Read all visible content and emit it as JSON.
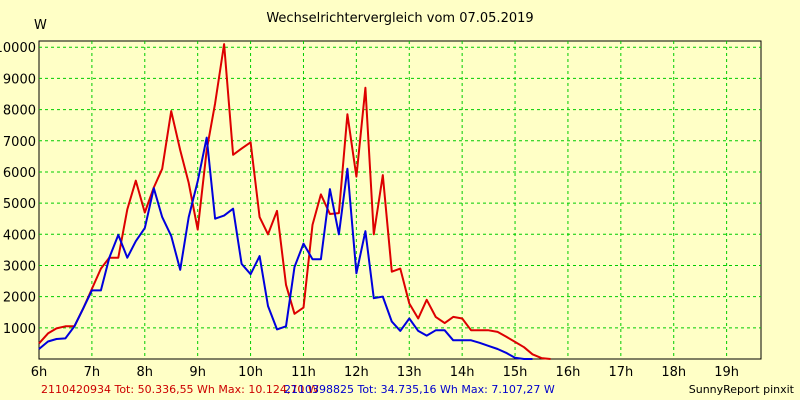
{
  "chart_data": {
    "type": "line",
    "title": "Wechselrichtervergleich vom 07.05.2019",
    "ylabel": "W",
    "xlabel": "",
    "ylim": [
      0,
      10200
    ],
    "xlim": [
      6,
      19.65
    ],
    "yticks": [
      1000,
      2000,
      3000,
      4000,
      5000,
      6000,
      7000,
      8000,
      9000,
      10000
    ],
    "xticks": [
      {
        "value": 6,
        "label": "6h"
      },
      {
        "value": 7,
        "label": "7h"
      },
      {
        "value": 8,
        "label": "8h"
      },
      {
        "value": 9,
        "label": "9h"
      },
      {
        "value": 10,
        "label": "10h"
      },
      {
        "value": 11,
        "label": "11h"
      },
      {
        "value": 12,
        "label": "12h"
      },
      {
        "value": 13,
        "label": "13h"
      },
      {
        "value": 14,
        "label": "14h"
      },
      {
        "value": 15,
        "label": "15h"
      },
      {
        "value": 16,
        "label": "16h"
      },
      {
        "value": 17,
        "label": "17h"
      },
      {
        "value": 18,
        "label": "18h"
      },
      {
        "value": 19,
        "label": "19h"
      }
    ],
    "grid": true,
    "series": [
      {
        "color": "#dd0000",
        "points": [
          [
            6.0,
            500
          ],
          [
            6.17,
            820
          ],
          [
            6.33,
            980
          ],
          [
            6.5,
            1050
          ],
          [
            6.67,
            1050
          ],
          [
            6.83,
            1600
          ],
          [
            7.0,
            2250
          ],
          [
            7.17,
            2900
          ],
          [
            7.33,
            3250
          ],
          [
            7.5,
            3250
          ],
          [
            7.67,
            4800
          ],
          [
            7.83,
            5720
          ],
          [
            8.0,
            4700
          ],
          [
            8.17,
            5500
          ],
          [
            8.33,
            6100
          ],
          [
            8.5,
            7950
          ],
          [
            8.67,
            6700
          ],
          [
            8.83,
            5650
          ],
          [
            9.0,
            4150
          ],
          [
            9.17,
            6700
          ],
          [
            9.33,
            8200
          ],
          [
            9.5,
            10100
          ],
          [
            9.67,
            6550
          ],
          [
            9.83,
            6750
          ],
          [
            10.0,
            6950
          ],
          [
            10.17,
            4550
          ],
          [
            10.33,
            4000
          ],
          [
            10.5,
            4750
          ],
          [
            10.67,
            2380
          ],
          [
            10.83,
            1450
          ],
          [
            11.0,
            1650
          ],
          [
            11.17,
            4300
          ],
          [
            11.33,
            5280
          ],
          [
            11.5,
            4650
          ],
          [
            11.67,
            4680
          ],
          [
            11.83,
            7850
          ],
          [
            12.0,
            5850
          ],
          [
            12.17,
            8700
          ],
          [
            12.33,
            4000
          ],
          [
            12.5,
            5900
          ],
          [
            12.67,
            2800
          ],
          [
            12.83,
            2900
          ],
          [
            13.0,
            1780
          ],
          [
            13.17,
            1300
          ],
          [
            13.33,
            1900
          ],
          [
            13.5,
            1350
          ],
          [
            13.67,
            1150
          ],
          [
            13.83,
            1350
          ],
          [
            14.0,
            1300
          ],
          [
            14.17,
            920
          ],
          [
            14.33,
            920
          ],
          [
            14.5,
            920
          ],
          [
            14.67,
            870
          ],
          [
            14.83,
            720
          ],
          [
            15.0,
            550
          ],
          [
            15.17,
            380
          ],
          [
            15.33,
            150
          ],
          [
            15.5,
            30
          ],
          [
            15.67,
            0
          ]
        ]
      },
      {
        "color": "#0000dd",
        "points": [
          [
            6.0,
            320
          ],
          [
            6.17,
            560
          ],
          [
            6.33,
            640
          ],
          [
            6.5,
            660
          ],
          [
            6.67,
            1050
          ],
          [
            6.83,
            1600
          ],
          [
            7.0,
            2200
          ],
          [
            7.17,
            2200
          ],
          [
            7.33,
            3250
          ],
          [
            7.5,
            3980
          ],
          [
            7.67,
            3250
          ],
          [
            7.83,
            3780
          ],
          [
            8.0,
            4200
          ],
          [
            8.17,
            5480
          ],
          [
            8.33,
            4550
          ],
          [
            8.5,
            3950
          ],
          [
            8.67,
            2860
          ],
          [
            8.83,
            4550
          ],
          [
            9.0,
            5700
          ],
          [
            9.17,
            7100
          ],
          [
            9.33,
            4500
          ],
          [
            9.5,
            4600
          ],
          [
            9.67,
            4820
          ],
          [
            9.83,
            3050
          ],
          [
            10.0,
            2720
          ],
          [
            10.17,
            3300
          ],
          [
            10.33,
            1700
          ],
          [
            10.5,
            950
          ],
          [
            10.67,
            1050
          ],
          [
            10.83,
            2950
          ],
          [
            11.0,
            3700
          ],
          [
            11.17,
            3200
          ],
          [
            11.33,
            3200
          ],
          [
            11.5,
            5450
          ],
          [
            11.67,
            4000
          ],
          [
            11.83,
            6100
          ],
          [
            12.0,
            2750
          ],
          [
            12.17,
            4100
          ],
          [
            12.33,
            1950
          ],
          [
            12.5,
            2000
          ],
          [
            12.67,
            1200
          ],
          [
            12.83,
            900
          ],
          [
            13.0,
            1300
          ],
          [
            13.17,
            900
          ],
          [
            13.33,
            750
          ],
          [
            13.5,
            920
          ],
          [
            13.67,
            920
          ],
          [
            13.83,
            600
          ],
          [
            14.0,
            600
          ],
          [
            14.17,
            600
          ],
          [
            14.33,
            520
          ],
          [
            14.5,
            420
          ],
          [
            14.67,
            320
          ],
          [
            14.83,
            200
          ],
          [
            15.0,
            40
          ],
          [
            15.17,
            0
          ],
          [
            15.33,
            0
          ]
        ]
      }
    ]
  },
  "footer": {
    "series1": "2110420934 Tot: 50.336,55 Wh Max: 10.124,70 W",
    "series2": "2110398825 Tot: 34.735,16 Wh Max: 7.107,27 W",
    "credit": "SunnyReport pinxit"
  }
}
